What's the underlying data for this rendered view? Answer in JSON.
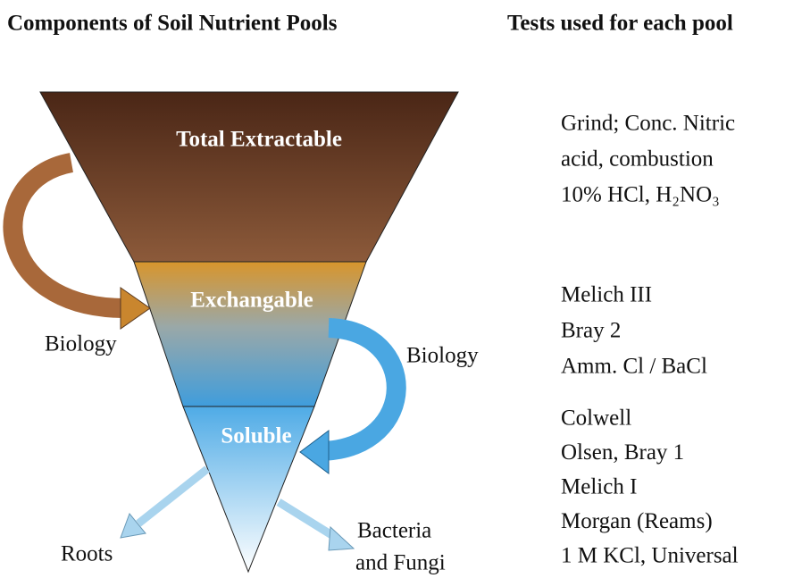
{
  "headers": {
    "left": "Components of Soil Nutrient Pools",
    "right": "Tests used for each pool"
  },
  "pools": [
    {
      "label": "Total Extractable"
    },
    {
      "label": "Exchangable"
    },
    {
      "label": "Soluble"
    }
  ],
  "arrows": [
    {
      "label": "Biology"
    },
    {
      "label": "Biology"
    },
    {
      "label": "Roots"
    },
    {
      "lines": [
        "Bacteria",
        "and Fungi"
      ]
    }
  ],
  "tests": [
    [
      "Grind; Conc. Nitric",
      "acid, combustion",
      "10% HCl, H₂NO₃"
    ],
    [
      "Melich III",
      "Bray 2",
      "Amm. Cl / BaCl"
    ],
    [
      "Colwell",
      "Olsen, Bray 1",
      "Melich I",
      "Morgan (Reams)",
      "1 M KCl, Universal"
    ]
  ]
}
